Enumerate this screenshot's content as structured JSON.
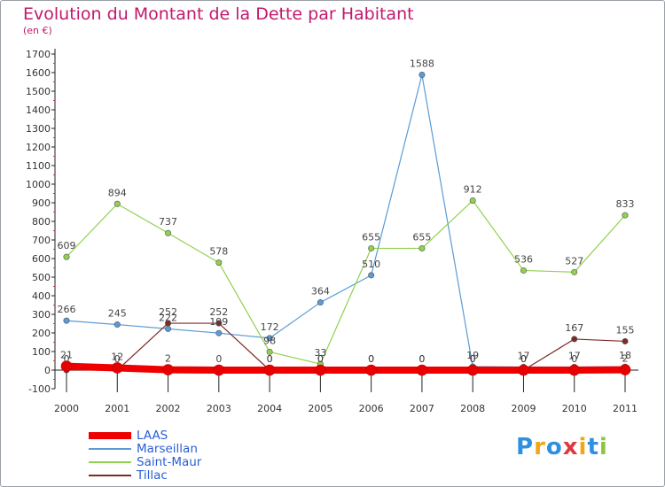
{
  "title": "Evolution du Montant de la Dette par Habitant",
  "subtitle": "(en €)",
  "logo": {
    "text": "Proxiti",
    "colors": [
      "#2f8fe0",
      "#f2a516",
      "#2f8fe0",
      "#e0383d",
      "#f2a516",
      "#2f8fe0",
      "#8cc63f"
    ]
  },
  "chart_data": {
    "type": "line",
    "x": [
      "2000",
      "2001",
      "2002",
      "2003",
      "2004",
      "2005",
      "2006",
      "2007",
      "2008",
      "2009",
      "2010",
      "2011"
    ],
    "ylim": [
      -100,
      1700
    ],
    "yticks": [
      -100,
      0,
      100,
      200,
      300,
      400,
      500,
      600,
      700,
      800,
      900,
      1000,
      1100,
      1200,
      1300,
      1400,
      1500,
      1600,
      1700
    ],
    "grid": false,
    "legend": "bottom-left",
    "series": [
      {
        "name": "LAAS",
        "color": "#ee0000",
        "width": 8,
        "values": [
          21,
          12,
          2,
          0,
          0,
          0,
          0,
          0,
          0,
          0,
          0,
          2
        ]
      },
      {
        "name": "Marseillan",
        "color": "#5b9bd5",
        "width": 1.2,
        "values": [
          266,
          245,
          222,
          199,
          172,
          364,
          510,
          1588,
          19,
          17,
          17,
          18
        ]
      },
      {
        "name": "Saint-Maur",
        "color": "#92d050",
        "width": 1.2,
        "values": [
          609,
          894,
          737,
          578,
          98,
          33,
          655,
          655,
          912,
          536,
          527,
          833
        ]
      },
      {
        "name": "Tillac",
        "color": "#7f2a2a",
        "width": 1.2,
        "values": [
          0,
          0,
          252,
          252,
          0,
          0,
          0,
          0,
          0,
          0,
          167,
          155
        ]
      }
    ]
  }
}
